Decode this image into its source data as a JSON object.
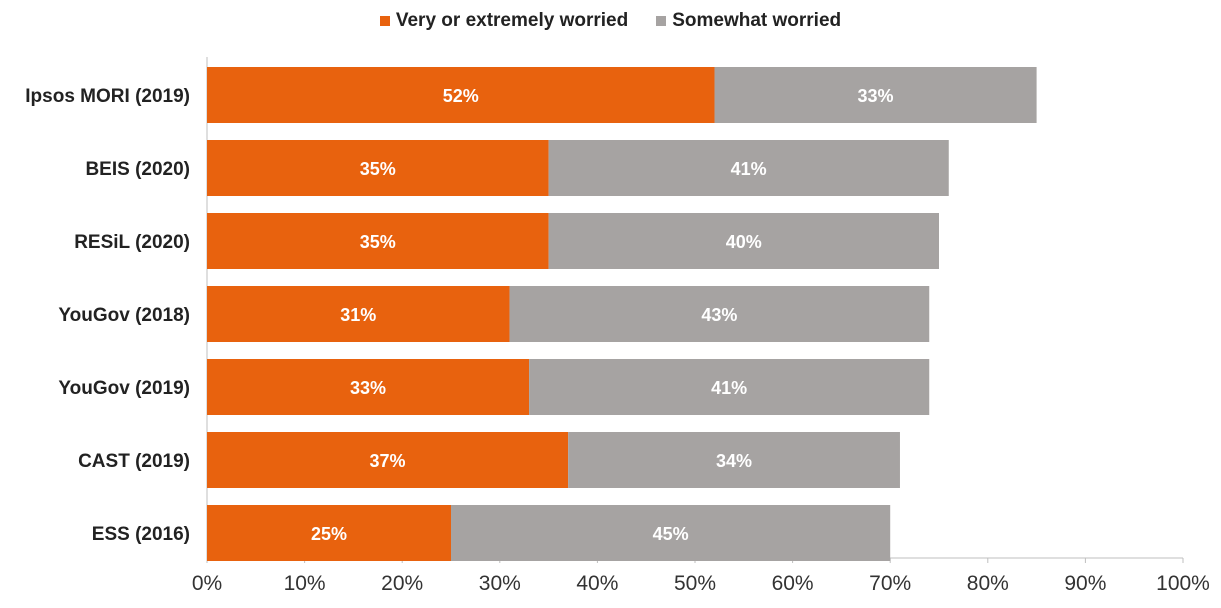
{
  "chart_data": {
    "type": "bar",
    "orientation": "horizontal",
    "stacked": true,
    "categories": [
      "Ipsos MORI (2019)",
      "BEIS (2020)",
      "RESiL (2020)",
      "YouGov (2018)",
      "YouGov (2019)",
      "CAST (2019)",
      "ESS (2016)"
    ],
    "series": [
      {
        "name": "Very or extremely worried",
        "color": "#e8620e",
        "values": [
          52,
          35,
          35,
          31,
          33,
          37,
          25
        ],
        "labels": [
          "52%",
          "35%",
          "35%",
          "31%",
          "33%",
          "37%",
          "25%"
        ]
      },
      {
        "name": "Somewhat worried",
        "color": "#a6a3a2",
        "values": [
          33,
          41,
          40,
          43,
          41,
          34,
          45
        ],
        "labels": [
          "33%",
          "41%",
          "40%",
          "43%",
          "41%",
          "34%",
          "45%"
        ]
      }
    ],
    "xlim": [
      0,
      100
    ],
    "xticks": [
      "0%",
      "10%",
      "20%",
      "30%",
      "40%",
      "50%",
      "60%",
      "70%",
      "80%",
      "90%",
      "100%"
    ],
    "grid": false,
    "legend_position": "top-center"
  }
}
